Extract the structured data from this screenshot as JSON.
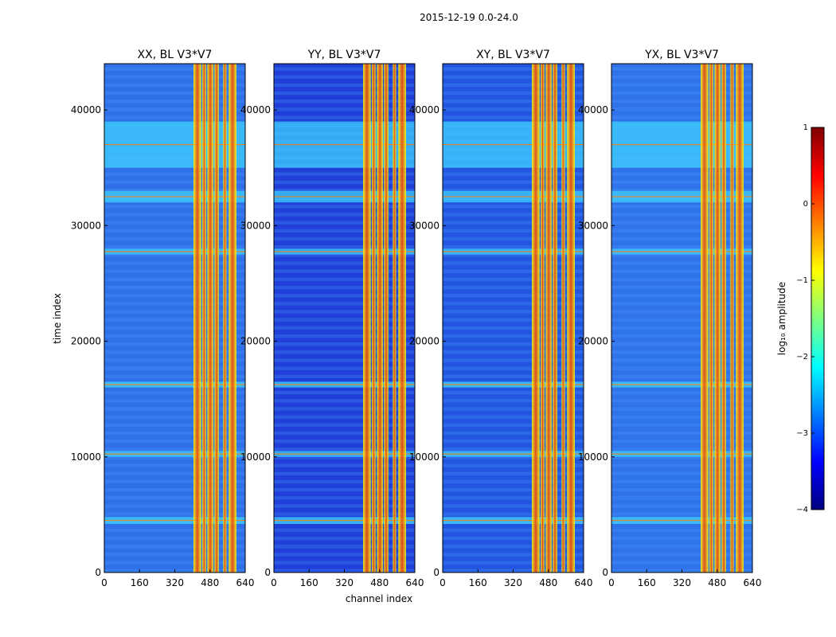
{
  "figure": {
    "suptitle": "2015-12-19 0.0-24.0"
  },
  "chart_data": {
    "type": "heatmap",
    "title": "2015-12-19 0.0-24.0",
    "xlabel": "channel index",
    "ylabel": "time index",
    "xlim": [
      0,
      640
    ],
    "ylim": [
      0,
      44000
    ],
    "xticks": [
      0,
      160,
      320,
      480,
      640
    ],
    "yticks": [
      0,
      10000,
      20000,
      30000,
      40000
    ],
    "panels": [
      {
        "title": "XX, BL V3*V7",
        "pol": "XX",
        "ytick_labels_full": true
      },
      {
        "title": "YY, BL V3*V7",
        "pol": "YY",
        "ytick_labels_full": false
      },
      {
        "title": "XY, BL V3*V7",
        "pol": "XY",
        "ytick_labels_full": false
      },
      {
        "title": "YX, BL V3*V7",
        "pol": "YX",
        "ytick_labels_full": false
      }
    ],
    "rfi_channel_bands": [
      [
        405,
        440
      ],
      [
        445,
        462
      ],
      [
        468,
        495
      ],
      [
        500,
        520
      ],
      [
        540,
        555
      ],
      [
        565,
        600
      ]
    ],
    "rfi_time_bands": [
      [
        35000,
        39000
      ],
      [
        32000,
        33000
      ],
      [
        27500,
        28000
      ],
      [
        16000,
        16500
      ],
      [
        10000,
        10500
      ],
      [
        4200,
        4800
      ]
    ],
    "colorbar": {
      "label": "log₁₀ amplitude",
      "range": [
        -4,
        1
      ],
      "ticks": [
        1,
        0,
        -1,
        -2,
        -3,
        -4
      ],
      "tick_labels": [
        "1",
        "0",
        "−1",
        "−2",
        "−3",
        "−4"
      ],
      "colormap": "jet",
      "colors": [
        "#00007f",
        "#0000ff",
        "#007fff",
        "#00ffff",
        "#7fff7f",
        "#ffff00",
        "#ff7f00",
        "#ff0000",
        "#7f0000"
      ]
    }
  }
}
